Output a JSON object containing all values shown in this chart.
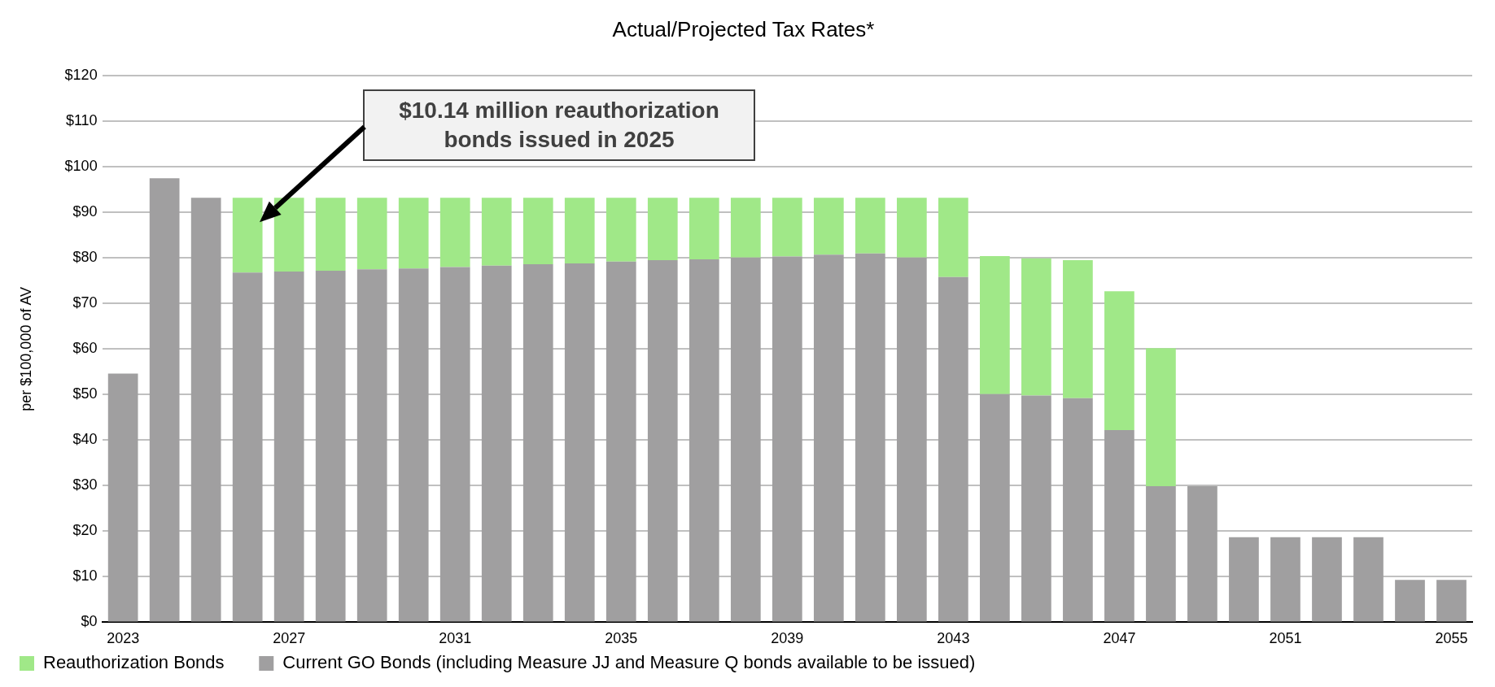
{
  "chart_data": {
    "type": "bar",
    "title": "Actual/Projected Tax Rates*",
    "ylabel": "per $100,000 of AV",
    "stacked": true,
    "categories": [
      "2023",
      null,
      null,
      null,
      "2027",
      null,
      null,
      null,
      "2031",
      null,
      null,
      null,
      "2035",
      null,
      null,
      null,
      "2039",
      null,
      null,
      null,
      "2043",
      null,
      null,
      null,
      "2047",
      null,
      null,
      null,
      "2051",
      null,
      null,
      null,
      "2055"
    ],
    "series": [
      {
        "name": "Current GO Bonds (including Measure JJ and Measure Q bonds available to be issued)",
        "color": "#a09fa0",
        "values": [
          54.6,
          97.5,
          93.2,
          76.8,
          77.0,
          77.2,
          77.5,
          77.7,
          78.0,
          78.3,
          78.6,
          78.8,
          79.2,
          79.5,
          79.7,
          80.1,
          80.3,
          80.7,
          81.0,
          80.1,
          75.8,
          50.1,
          49.8,
          49.2,
          42.2,
          29.9,
          29.9,
          18.7,
          18.7,
          18.7,
          18.7,
          9.3,
          9.3
        ]
      },
      {
        "name": "Reauthorization Bonds",
        "color": "#a0e888",
        "values": [
          null,
          null,
          null,
          16.4,
          16.2,
          16.0,
          15.7,
          15.5,
          15.2,
          14.9,
          14.6,
          14.4,
          14.0,
          13.7,
          13.5,
          13.1,
          12.9,
          12.5,
          12.2,
          13.1,
          17.4,
          30.3,
          30.1,
          30.3,
          30.5,
          30.3,
          null,
          null,
          null,
          null,
          null,
          null,
          null
        ]
      }
    ],
    "ylim": [
      0,
      120
    ],
    "yticks": [
      {
        "value": 0,
        "label": "$0"
      },
      {
        "value": 10,
        "label": "$10"
      },
      {
        "value": 20,
        "label": "$20"
      },
      {
        "value": 30,
        "label": "$30"
      },
      {
        "value": 40,
        "label": "$40"
      },
      {
        "value": 50,
        "label": "$50"
      },
      {
        "value": 60,
        "label": "$60"
      },
      {
        "value": 70,
        "label": "$70"
      },
      {
        "value": 80,
        "label": "$80"
      },
      {
        "value": 90,
        "label": "$90"
      },
      {
        "value": 100,
        "label": "$100"
      },
      {
        "value": 110,
        "label": "$110"
      },
      {
        "value": 120,
        "label": "$120"
      }
    ],
    "grid": "y",
    "legend": "bottom left",
    "annotations": [
      "$10.14 million reauthorization bonds issued in 2025"
    ]
  }
}
